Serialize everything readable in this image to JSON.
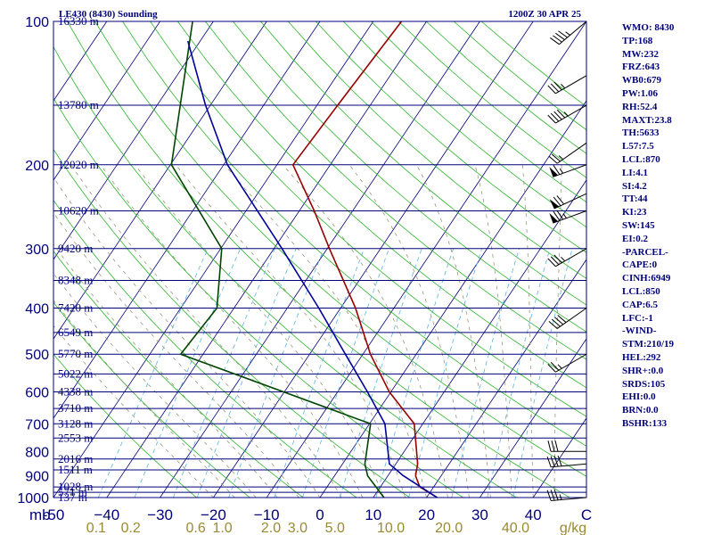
{
  "header": {
    "station": "LE430 (8430) Sounding",
    "time": "1200Z 30 APR 25"
  },
  "stats": [
    "WMO: 8430",
    "TP:168",
    "MW:232",
    "FRZ:643",
    "WB0:679",
    "PW:1.06",
    "RH:52.4",
    "MAXT:23.8",
    "TH:5633",
    "L57:7.5",
    "LCL:870",
    "LI:4.1",
    "SI:4.2",
    "TT:44",
    "KI:23",
    "SW:145",
    "EI:0.2",
    "-PARCEL-",
    "CAPE:0",
    "CINH:6949",
    "LCL:850",
    "CAP:6.5",
    "LFC:-1",
    "-WIND-",
    "STM:210/19",
    "HEL:292",
    "SHR+:0.0",
    "SRDS:105",
    "EHI:0.0",
    "BRN:0.0",
    "BSHR:133"
  ],
  "colors": {
    "isobar": "#00007a",
    "isotherm": "#00007a",
    "dry_adiabat": "#2db52d",
    "moist_adiabat": "#8a8a6a",
    "mixing_ratio": "#5ab4e6",
    "temperature": "#990000",
    "dewpoint": "#004400",
    "parcel": "#000099",
    "text": "#00007a",
    "ratio_labels": "#9a8a30"
  },
  "chart_data": {
    "type": "line",
    "title": "",
    "pressure_unit": "mb",
    "mixing_ratio_unit": "g/kg",
    "xlim": [
      -50,
      50
    ],
    "pressure_range": [
      1000,
      100
    ],
    "grid": true,
    "pressure_ticks": [
      100,
      200,
      300,
      400,
      500,
      600,
      700,
      800,
      900,
      1000
    ],
    "temperature_ticks": [
      -50,
      -40,
      -30,
      -20,
      -10,
      0,
      10,
      20,
      30,
      40,
      50
    ],
    "temperature_tick_labels": [
      "-50",
      "−40",
      "−30",
      "−20",
      "−10",
      "0",
      "10",
      "20",
      "30",
      "40",
      "C"
    ],
    "mixing_ratio_labels": [
      {
        "label": "0.1",
        "temp_at_bottom": -42
      },
      {
        "label": "0.2",
        "temp_at_bottom": -35.5
      },
      {
        "label": "0.6",
        "temp_at_bottom": -23.3
      },
      {
        "label": "1.0",
        "temp_at_bottom": -18.3
      },
      {
        "label": "2.0",
        "temp_at_bottom": -9.2
      },
      {
        "label": "3.0",
        "temp_at_bottom": -4.2
      },
      {
        "label": "5.0",
        "temp_at_bottom": 2.8
      },
      {
        "label": "10.0",
        "temp_at_bottom": 13.3
      },
      {
        "label": "20.0",
        "temp_at_bottom": 24.2
      },
      {
        "label": "40.0",
        "temp_at_bottom": 36.7
      },
      {
        "label": "g/kg",
        "temp_at_bottom": 47.5
      }
    ],
    "height_levels": [
      {
        "pressure": 1000,
        "label": "137 m"
      },
      {
        "pressure": 975,
        "label": "571 m"
      },
      {
        "pressure": 950,
        "label": "1028 m"
      },
      {
        "pressure": 875,
        "label": "1511 m"
      },
      {
        "pressure": 830,
        "label": "2016 m"
      },
      {
        "pressure": 750,
        "label": "2553 m"
      },
      {
        "pressure": 700,
        "label": "3128 m"
      },
      {
        "pressure": 650,
        "label": "3710 m"
      },
      {
        "pressure": 600,
        "label": "4338 m"
      },
      {
        "pressure": 550,
        "label": "5022 m"
      },
      {
        "pressure": 500,
        "label": "5770 m"
      },
      {
        "pressure": 450,
        "label": "6549 m"
      },
      {
        "pressure": 400,
        "label": "7420 m"
      },
      {
        "pressure": 350,
        "label": "8348 m"
      },
      {
        "pressure": 300,
        "label": "9420 m"
      },
      {
        "pressure": 250,
        "label": "10620 m"
      },
      {
        "pressure": 200,
        "label": "12020 m"
      },
      {
        "pressure": 150,
        "label": "13780 m"
      },
      {
        "pressure": 100,
        "label": "16330 m"
      }
    ],
    "series": [
      {
        "key": "temperature",
        "points": [
          [
            1000,
            22
          ],
          [
            950,
            17.4
          ],
          [
            900,
            15.2
          ],
          [
            850,
            14.1
          ],
          [
            700,
            8.4
          ],
          [
            600,
            -0.3
          ],
          [
            500,
            -8.6
          ],
          [
            400,
            -17.2
          ],
          [
            300,
            -29.6
          ],
          [
            250,
            -37.2
          ],
          [
            200,
            -47
          ],
          [
            150,
            -46.1
          ],
          [
            100,
            -44.7
          ]
        ]
      },
      {
        "key": "dewpoint",
        "points": [
          [
            1000,
            12
          ],
          [
            900,
            6.2
          ],
          [
            850,
            4.2
          ],
          [
            700,
            0.2
          ],
          [
            500,
            -44.2
          ],
          [
            400,
            -43.2
          ],
          [
            300,
            -49.8
          ],
          [
            200,
            -69.8
          ],
          [
            100,
            -83.9
          ]
        ]
      },
      {
        "key": "parcel",
        "points": [
          [
            1000,
            22
          ],
          [
            900,
            12.9
          ],
          [
            850,
            8.8
          ],
          [
            700,
            2.9
          ],
          [
            600,
            -4.4
          ],
          [
            500,
            -13.3
          ],
          [
            400,
            -24.1
          ],
          [
            300,
            -38.5
          ],
          [
            200,
            -59.3
          ],
          [
            150,
            -70.9
          ],
          [
            110,
            -82.3
          ]
        ]
      }
    ],
    "wind_barbs": [
      {
        "pressure": 1000,
        "dir": 265,
        "speed": 35
      },
      {
        "pressure": 850,
        "dir": 265,
        "speed": 40
      },
      {
        "pressure": 800,
        "dir": 270,
        "speed": 30
      },
      {
        "pressure": 500,
        "dir": 240,
        "speed": 25
      },
      {
        "pressure": 400,
        "dir": 235,
        "speed": 40
      },
      {
        "pressure": 300,
        "dir": 240,
        "speed": 35
      },
      {
        "pressure": 250,
        "dir": 250,
        "speed": 75
      },
      {
        "pressure": 230,
        "dir": 245,
        "speed": 70
      },
      {
        "pressure": 200,
        "dir": 250,
        "speed": 65
      },
      {
        "pressure": 180,
        "dir": 235,
        "speed": 25
      },
      {
        "pressure": 150,
        "dir": 240,
        "speed": 45
      },
      {
        "pressure": 130,
        "dir": 240,
        "speed": 35
      },
      {
        "pressure": 100,
        "dir": 230,
        "speed": 45
      }
    ]
  }
}
